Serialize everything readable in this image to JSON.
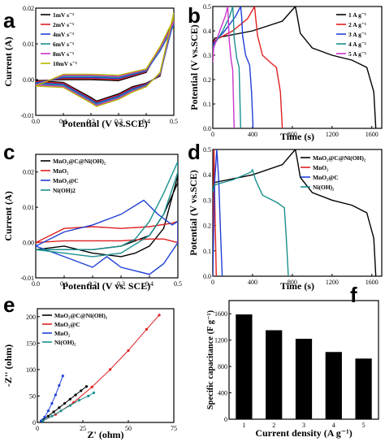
{
  "chart_data": [
    {
      "panel": "a",
      "type": "line",
      "xlabel": "Potential (V vs.SCE)",
      "ylabel": "Current (A)",
      "xlim": [
        0.0,
        0.5
      ],
      "ylim": [
        -0.01,
        0.02
      ],
      "xticks": [
        "0.0",
        "0.1",
        "0.2",
        "0.3",
        "0.4",
        "0.5"
      ],
      "yticks": [
        "-0.01",
        "0.00",
        "0.01",
        "0.02"
      ],
      "legend_position": "top-left",
      "series": [
        {
          "name": "1mV s⁻¹",
          "color": "#000000",
          "x": [
            0.0,
            0.1,
            0.2,
            0.22,
            0.3,
            0.35,
            0.4,
            0.45,
            0.5,
            0.5,
            0.45,
            0.4,
            0.3,
            0.2,
            0.1,
            0.0
          ],
          "y": [
            -0.0003,
            -0.0008,
            -0.005,
            -0.006,
            -0.004,
            -0.002,
            -0.001,
            0.001,
            0.0185,
            0.0165,
            0.009,
            0.002,
            -0.0003,
            0.0,
            0.0,
            -0.0003
          ]
        },
        {
          "name": "2mV s⁻¹",
          "color": "#e02020",
          "x": [
            0.0,
            0.1,
            0.2,
            0.22,
            0.3,
            0.35,
            0.4,
            0.45,
            0.5,
            0.5,
            0.45,
            0.4,
            0.3,
            0.2,
            0.1,
            0.0
          ],
          "y": [
            -0.0006,
            -0.001,
            -0.0053,
            -0.0063,
            -0.0043,
            -0.0023,
            -0.0012,
            0.0012,
            0.0175,
            0.0158,
            0.0085,
            0.0022,
            0.0,
            0.0003,
            0.0003,
            -0.0006
          ]
        },
        {
          "name": "4mV s⁻¹",
          "color": "#1f3fd6",
          "x": [
            0.0,
            0.1,
            0.2,
            0.22,
            0.3,
            0.35,
            0.4,
            0.45,
            0.5,
            0.5,
            0.45,
            0.4,
            0.3,
            0.2,
            0.1,
            0.0
          ],
          "y": [
            -0.0009,
            -0.0013,
            -0.0056,
            -0.0066,
            -0.0046,
            -0.0026,
            -0.0014,
            0.0014,
            0.0165,
            0.0152,
            0.008,
            0.0024,
            0.0003,
            0.0006,
            0.0006,
            -0.0009
          ]
        },
        {
          "name": "6mV s⁻¹",
          "color": "#1a8f8f",
          "x": [
            0.0,
            0.1,
            0.2,
            0.22,
            0.3,
            0.35,
            0.4,
            0.45,
            0.5,
            0.5,
            0.45,
            0.4,
            0.3,
            0.2,
            0.1,
            0.0
          ],
          "y": [
            -0.0012,
            -0.0016,
            -0.0059,
            -0.0069,
            -0.0049,
            -0.0029,
            -0.0016,
            0.0016,
            0.0172,
            0.0155,
            0.0083,
            0.0026,
            0.0006,
            0.0009,
            0.0009,
            -0.0012
          ]
        },
        {
          "name": "8mV s⁻¹",
          "color": "#cc33cc",
          "x": [
            0.0,
            0.1,
            0.2,
            0.22,
            0.3,
            0.35,
            0.4,
            0.45,
            0.5,
            0.5,
            0.45,
            0.4,
            0.3,
            0.2,
            0.1,
            0.0
          ],
          "y": [
            -0.0015,
            -0.0019,
            -0.0062,
            -0.0072,
            -0.0052,
            -0.0032,
            -0.0018,
            0.0018,
            0.0178,
            0.016,
            0.0087,
            0.0028,
            0.0009,
            0.0012,
            0.0012,
            -0.0015
          ]
        },
        {
          "name": "10mV s⁻¹",
          "color": "#b8b800",
          "x": [
            0.0,
            0.1,
            0.2,
            0.22,
            0.3,
            0.35,
            0.4,
            0.45,
            0.5,
            0.5,
            0.45,
            0.4,
            0.3,
            0.2,
            0.1,
            0.0
          ],
          "y": [
            -0.0018,
            -0.0022,
            -0.0065,
            -0.0075,
            -0.0055,
            -0.0035,
            -0.002,
            0.002,
            0.0188,
            0.017,
            0.0092,
            0.003,
            0.0012,
            0.0015,
            0.0015,
            -0.0018
          ]
        }
      ]
    },
    {
      "panel": "b",
      "type": "line",
      "xlabel": "Time (s)",
      "ylabel": "Potential (V vs.SCE)",
      "xlim": [
        0,
        1700
      ],
      "ylim": [
        0.0,
        0.5
      ],
      "xticks": [
        "0",
        "400",
        "800",
        "1200",
        "1600"
      ],
      "yticks": [
        "0.0",
        "0.1",
        "0.2",
        "0.3",
        "0.4",
        "0.5"
      ],
      "legend_position": "top-right",
      "series": [
        {
          "name": "1 A g⁻¹",
          "color": "#000000",
          "x": [
            0,
            20,
            400,
            700,
            830,
            850,
            880,
            1000,
            1200,
            1400,
            1550,
            1620,
            1640
          ],
          "y": [
            0.35,
            0.37,
            0.4,
            0.44,
            0.5,
            0.46,
            0.39,
            0.33,
            0.3,
            0.28,
            0.25,
            0.15,
            0.0
          ]
        },
        {
          "name": "2 A g⁻¹",
          "color": "#e02020",
          "x": [
            0,
            15,
            200,
            350,
            420,
            430,
            450,
            500,
            580,
            640,
            680,
            700
          ],
          "y": [
            0.33,
            0.36,
            0.4,
            0.45,
            0.5,
            0.46,
            0.38,
            0.3,
            0.27,
            0.25,
            0.15,
            0.0
          ]
        },
        {
          "name": "3 A g⁻¹",
          "color": "#1f3fd6",
          "x": [
            0,
            10,
            120,
            230,
            280,
            290,
            300,
            330,
            370,
            390,
            405
          ],
          "y": [
            0.31,
            0.35,
            0.4,
            0.46,
            0.5,
            0.46,
            0.38,
            0.3,
            0.26,
            0.15,
            0.0
          ]
        },
        {
          "name": "4 A g⁻¹",
          "color": "#1a8f8f",
          "x": [
            0,
            10,
            100,
            170,
            200,
            207,
            215,
            240,
            265,
            280
          ],
          "y": [
            0.29,
            0.34,
            0.4,
            0.46,
            0.5,
            0.46,
            0.37,
            0.29,
            0.25,
            0.0
          ]
        },
        {
          "name": "5 A g⁻¹",
          "color": "#cc33cc",
          "x": [
            0,
            8,
            70,
            125,
            150,
            155,
            165,
            185,
            200,
            215
          ],
          "y": [
            0.27,
            0.33,
            0.4,
            0.46,
            0.5,
            0.46,
            0.36,
            0.28,
            0.24,
            0.0
          ]
        }
      ]
    },
    {
      "panel": "c",
      "type": "line",
      "xlabel": "Potential (V vs. SCE)",
      "ylabel": "Current (A)",
      "xlim": [
        0.0,
        0.5
      ],
      "ylim": [
        -0.01,
        0.025
      ],
      "xticks": [
        "0.0",
        "0.1",
        "0.2",
        "0.3",
        "0.4",
        "0.5"
      ],
      "yticks": [
        "-0.01",
        "0.00",
        "0.01",
        "0.02"
      ],
      "legend_position": "top-left",
      "series": [
        {
          "name": "MnO₂@C@Ni(OH)₂",
          "color": "#000000",
          "x": [
            0.0,
            0.1,
            0.2,
            0.3,
            0.35,
            0.4,
            0.45,
            0.5,
            0.5,
            0.45,
            0.4,
            0.3,
            0.2,
            0.1,
            0.0
          ],
          "y": [
            -0.002,
            -0.001,
            -0.003,
            -0.004,
            -0.003,
            -0.001,
            0.004,
            0.019,
            0.017,
            0.008,
            0.002,
            -0.001,
            -0.002,
            -0.002,
            -0.002
          ]
        },
        {
          "name": "MnO₂",
          "color": "#e02020",
          "x": [
            0.0,
            0.1,
            0.2,
            0.3,
            0.4,
            0.48,
            0.5,
            0.5,
            0.45,
            0.4,
            0.3,
            0.2,
            0.1,
            0.0
          ],
          "y": [
            0.0,
            0.004,
            0.0045,
            0.004,
            0.0045,
            0.0055,
            0.006,
            0.0,
            0.001,
            0.001,
            0.0005,
            0.0005,
            0.0005,
            0.0
          ]
        },
        {
          "name": "MnO₂@C",
          "color": "#1f3fd6",
          "x": [
            0.0,
            0.1,
            0.2,
            0.3,
            0.38,
            0.43,
            0.48,
            0.5,
            0.5,
            0.45,
            0.4,
            0.3,
            0.25,
            0.2,
            0.1,
            0.0
          ],
          "y": [
            -0.001,
            0.003,
            0.005,
            0.008,
            0.012,
            0.008,
            0.005,
            0.006,
            0.0,
            -0.006,
            -0.009,
            -0.007,
            -0.004,
            -0.007,
            -0.004,
            -0.001
          ]
        },
        {
          "name": "Ni(OH)2",
          "color": "#1a8f8f",
          "x": [
            0.0,
            0.1,
            0.2,
            0.3,
            0.35,
            0.4,
            0.45,
            0.5,
            0.5,
            0.45,
            0.4,
            0.3,
            0.2,
            0.1,
            0.0
          ],
          "y": [
            -0.002,
            -0.002,
            -0.002,
            -0.001,
            0.001,
            0.006,
            0.014,
            0.023,
            0.02,
            0.008,
            0.002,
            -0.003,
            -0.004,
            -0.003,
            -0.002
          ]
        }
      ]
    },
    {
      "panel": "d",
      "type": "line",
      "xlabel": "Time (s)",
      "ylabel": "Potential (V vs.SCE)",
      "xlim": [
        0,
        1700
      ],
      "ylim": [
        0.0,
        0.5
      ],
      "xticks": [
        "0",
        "400",
        "800",
        "1200",
        "1600"
      ],
      "yticks": [
        "0.0",
        "0.1",
        "0.2",
        "0.3",
        "0.4",
        "0.5"
      ],
      "legend_position": "top-right",
      "series": [
        {
          "name": "MnO₂@C@Ni(OH)₂",
          "color": "#000000",
          "x": [
            0,
            20,
            400,
            700,
            830,
            850,
            880,
            1000,
            1200,
            1400,
            1550,
            1620,
            1640
          ],
          "y": [
            0.35,
            0.37,
            0.4,
            0.44,
            0.5,
            0.46,
            0.39,
            0.33,
            0.3,
            0.28,
            0.25,
            0.15,
            0.0
          ]
        },
        {
          "name": "MnO₂",
          "color": "#e02020",
          "x": [
            0,
            12,
            20,
            35
          ],
          "y": [
            0.0,
            0.5,
            0.3,
            0.0
          ]
        },
        {
          "name": "MnO₂@C",
          "color": "#1f3fd6",
          "x": [
            0,
            20,
            40,
            60,
            75,
            95
          ],
          "y": [
            0.0,
            0.38,
            0.5,
            0.38,
            0.2,
            0.0
          ]
        },
        {
          "name": "Ni(OH)₂",
          "color": "#1a8f8f",
          "x": [
            0,
            15,
            200,
            380,
            400,
            430,
            500,
            650,
            720,
            740,
            760
          ],
          "y": [
            0.33,
            0.36,
            0.38,
            0.41,
            0.42,
            0.38,
            0.32,
            0.29,
            0.27,
            0.15,
            0.0
          ]
        }
      ]
    },
    {
      "panel": "e",
      "type": "scatter",
      "xlabel": "Z' (ohm)",
      "ylabel": "-Z'' (ohm)",
      "xlim": [
        0,
        75
      ],
      "ylim": [
        0,
        215
      ],
      "xticks": [
        "0",
        "25",
        "50",
        "75"
      ],
      "yticks": [
        "0",
        "50",
        "100",
        "150",
        "200"
      ],
      "legend_position": "top-left",
      "series": [
        {
          "name": "MnO₂@C@Ni(OH)₂",
          "color": "#000000",
          "x": [
            3,
            6,
            9,
            12,
            15,
            18,
            21,
            24,
            27
          ],
          "y": [
            5,
            12,
            20,
            28,
            36,
            44,
            52,
            60,
            68
          ]
        },
        {
          "name": "MnO₂@C",
          "color": "#e02020",
          "x": [
            3,
            10,
            20,
            30,
            40,
            50,
            60,
            67
          ],
          "y": [
            3,
            15,
            38,
            67,
            100,
            136,
            176,
            203
          ]
        },
        {
          "name": "MnO₂",
          "color": "#1f3fd6",
          "x": [
            2,
            4,
            6,
            8,
            10,
            12,
            14
          ],
          "y": [
            3,
            10,
            22,
            36,
            52,
            70,
            88
          ]
        },
        {
          "name": "Ni(OH)₂",
          "color": "#1a8f8f",
          "x": [
            3,
            8,
            13,
            18,
            23,
            28,
            31
          ],
          "y": [
            3,
            12,
            22,
            32,
            42,
            50,
            56
          ]
        }
      ]
    },
    {
      "panel": "f",
      "type": "bar",
      "xlabel": "Current density (A g⁻¹)",
      "ylabel": "Specific capacitance (F g⁻¹)",
      "ylim": [
        0,
        1800
      ],
      "yticks": [
        "0",
        "400",
        "800",
        "1200",
        "1600"
      ],
      "categories": [
        "1",
        "2",
        "3",
        "4",
        "5"
      ],
      "values": [
        1590,
        1350,
        1220,
        1020,
        920
      ]
    }
  ]
}
